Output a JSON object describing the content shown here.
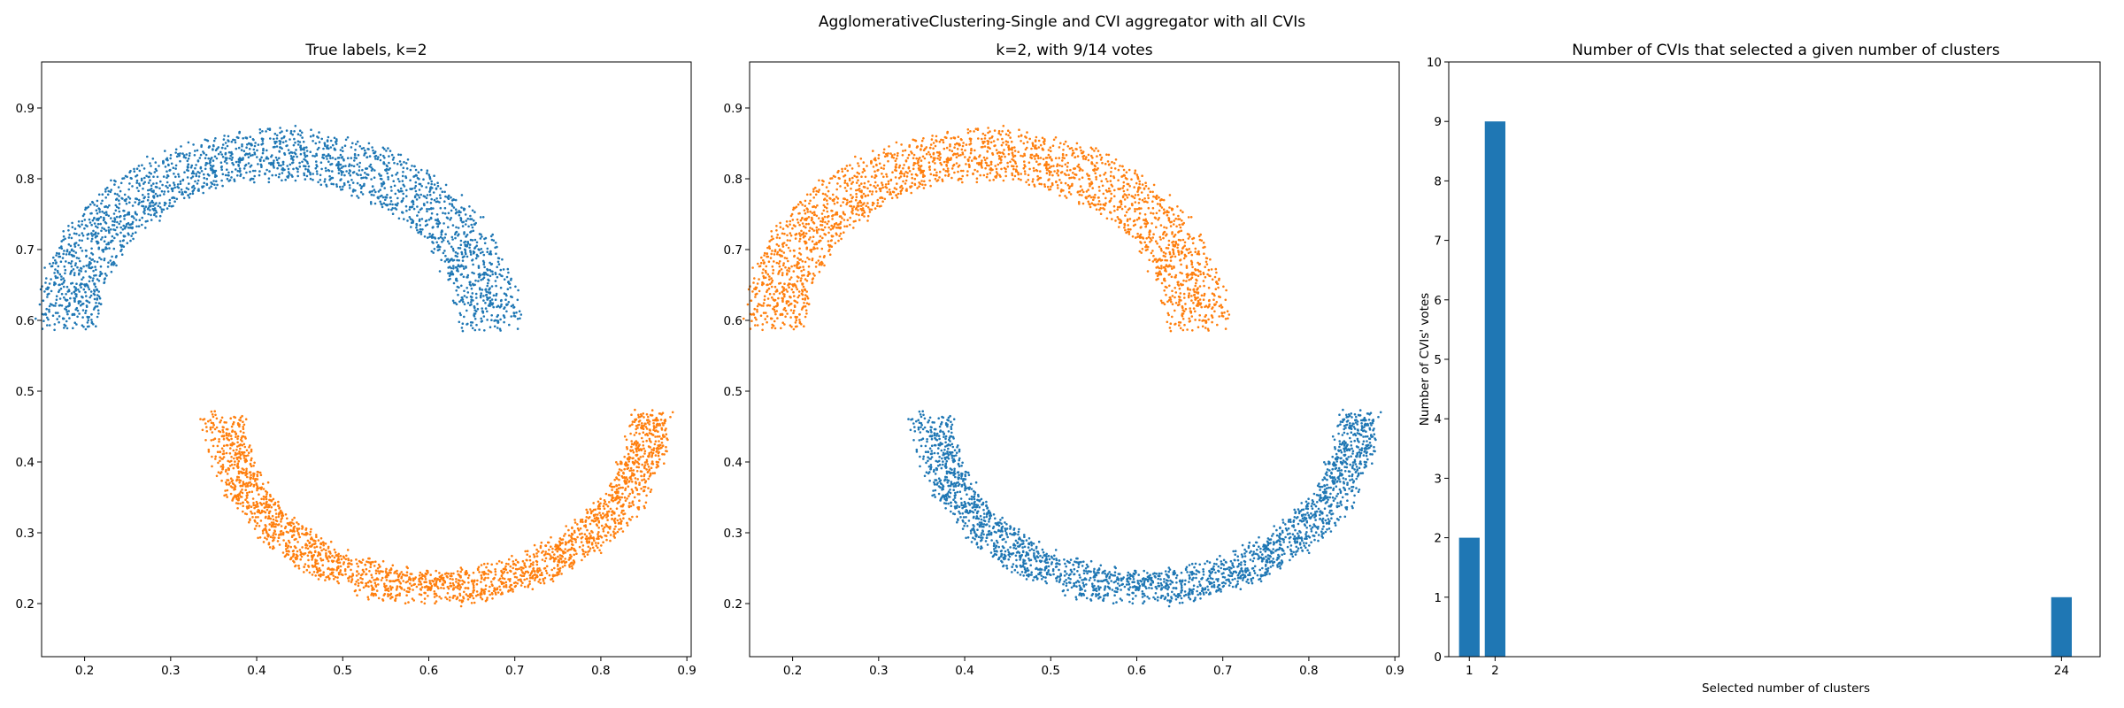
{
  "figure": {
    "suptitle": "AgglomerativeClustering-Single and CVI aggregator with all CVIs"
  },
  "colors": {
    "blue": "#1f77b4",
    "orange": "#ff7f0e"
  },
  "chart_data": [
    {
      "type": "scatter",
      "title": "True labels, k=2",
      "xlabel": "",
      "ylabel": "",
      "xlim": [
        0.15,
        0.905
      ],
      "ylim": [
        0.125,
        0.965
      ],
      "xticks": [
        "0.2",
        "0.3",
        "0.4",
        "0.5",
        "0.6",
        "0.7",
        "0.8",
        "0.9"
      ],
      "yticks": [
        "0.2",
        "0.3",
        "0.4",
        "0.5",
        "0.6",
        "0.7",
        "0.8",
        "0.9"
      ],
      "series": [
        {
          "color": "blue",
          "shape": "upper-arc",
          "center": [
            0.425,
            0.59
          ],
          "radius": [
            0.21,
            0.28
          ],
          "angle_deg": [
            0,
            180
          ],
          "points": 2300
        },
        {
          "color": "orange",
          "shape": "lower-arc",
          "center": [
            0.61,
            0.47
          ],
          "radius": [
            0.225,
            0.27
          ],
          "angle_deg": [
            180,
            360
          ],
          "points": 2300
        }
      ],
      "grid": false,
      "legend": "none"
    },
    {
      "type": "scatter",
      "title": "k=2, with 9/14 votes",
      "xlabel": "",
      "ylabel": "",
      "xlim": [
        0.15,
        0.905
      ],
      "ylim": [
        0.125,
        0.965
      ],
      "xticks": [
        "0.2",
        "0.3",
        "0.4",
        "0.5",
        "0.6",
        "0.7",
        "0.8",
        "0.9"
      ],
      "yticks": [
        "0.2",
        "0.3",
        "0.4",
        "0.5",
        "0.6",
        "0.7",
        "0.8",
        "0.9"
      ],
      "series": [
        {
          "color": "orange",
          "shape": "upper-arc",
          "center": [
            0.425,
            0.59
          ],
          "radius": [
            0.21,
            0.28
          ],
          "angle_deg": [
            0,
            180
          ],
          "points": 2300
        },
        {
          "color": "blue",
          "shape": "lower-arc",
          "center": [
            0.61,
            0.47
          ],
          "radius": [
            0.225,
            0.27
          ],
          "angle_deg": [
            180,
            360
          ],
          "points": 2300
        }
      ],
      "grid": false,
      "legend": "none"
    },
    {
      "type": "bar",
      "title": "Number of CVIs that selected a given number of clusters",
      "xlabel": "Selected number of clusters",
      "ylabel": "Number of CVIs' votes",
      "categories": [
        "1",
        "2",
        "24"
      ],
      "values": [
        2,
        9,
        1
      ],
      "xlim": [
        0.2,
        25.5
      ],
      "ylim": [
        0,
        10
      ],
      "yticks": [
        "0",
        "1",
        "2",
        "3",
        "4",
        "5",
        "6",
        "7",
        "8",
        "9",
        "10"
      ],
      "color": "blue",
      "grid": false,
      "legend": "none"
    }
  ]
}
